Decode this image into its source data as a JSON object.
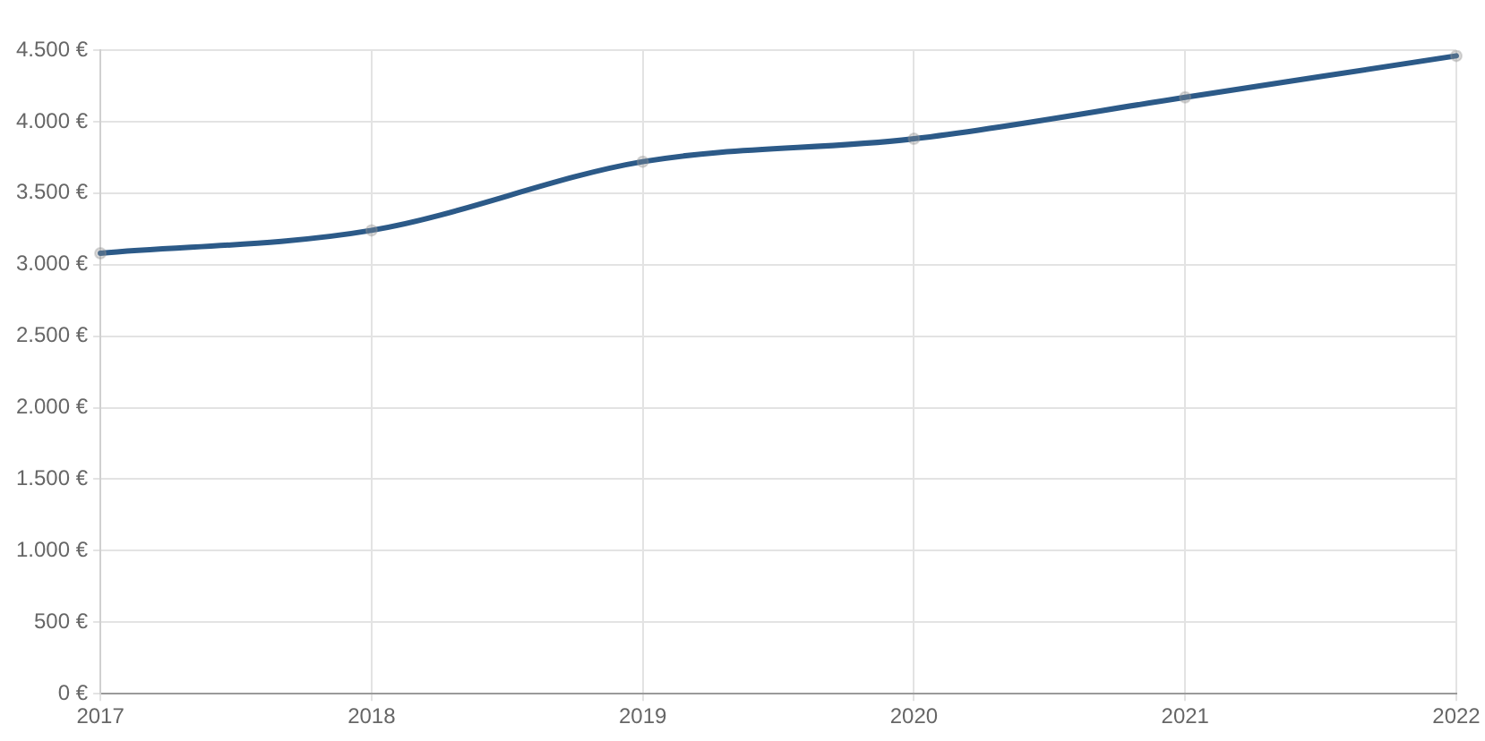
{
  "chart_data": {
    "type": "line",
    "categories": [
      "2017",
      "2018",
      "2019",
      "2020",
      "2021",
      "2022"
    ],
    "series": [
      {
        "color": "#2c5a88",
        "values": [
          3080,
          3240,
          3720,
          3880,
          4170,
          4460
        ]
      }
    ],
    "ylim": [
      0,
      4500
    ],
    "yticks": [
      {
        "value": 0,
        "label": "0 €"
      },
      {
        "value": 500,
        "label": "500 €"
      },
      {
        "value": 1000,
        "label": "1.000 €"
      },
      {
        "value": 1500,
        "label": "1.500 €"
      },
      {
        "value": 2000,
        "label": "2.000 €"
      },
      {
        "value": 2500,
        "label": "2.500 €"
      },
      {
        "value": 3000,
        "label": "3.000 €"
      },
      {
        "value": 3500,
        "label": "3.500 €"
      },
      {
        "value": 4000,
        "label": "4.000 €"
      },
      {
        "value": 4500,
        "label": "4.500 €"
      }
    ],
    "grid": true,
    "legend": false,
    "marker": "circle",
    "line_style": "solid"
  }
}
